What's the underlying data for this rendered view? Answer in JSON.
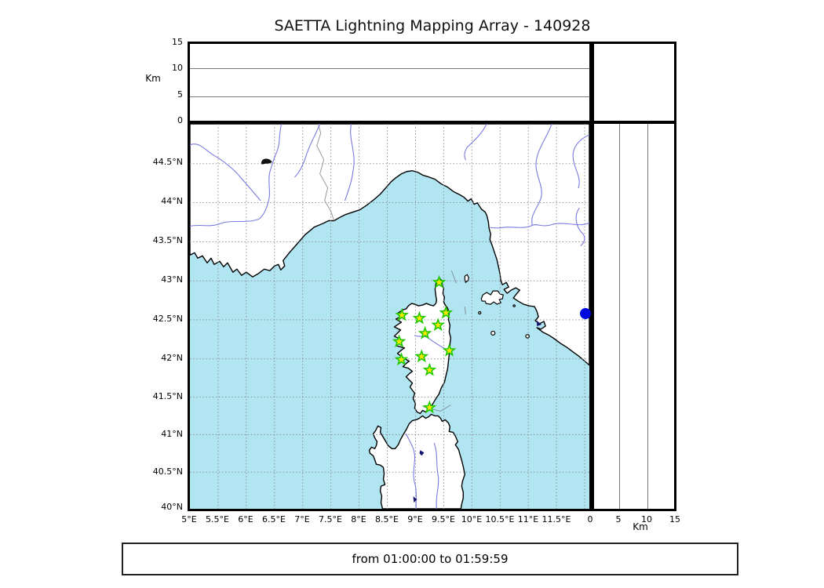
{
  "title": "SAETTA Lightning Mapping Array - 140928",
  "footer": {
    "text": "from 01:00:00 to 01:59:59"
  },
  "altitude_axis": {
    "label": "Km",
    "range_km": [
      0,
      15
    ],
    "top_panel_ticks": [
      "15",
      "10",
      "5",
      "0"
    ],
    "right_panel_ticks": [
      "0",
      "5",
      "10",
      "15"
    ]
  },
  "map": {
    "lat_ticks": [
      "44.5°N",
      "44°N",
      "43.5°N",
      "43°N",
      "42.5°N",
      "42°N",
      "41.5°N",
      "41°N",
      "40.5°N",
      "40°N"
    ],
    "lon_ticks": [
      "5°E",
      "5.5°E",
      "6°E",
      "6.5°E",
      "7°E",
      "7.5°E",
      "8°E",
      "8.5°E",
      "9°E",
      "9.5°E",
      "10°E",
      "10.5°E",
      "11°E",
      "11.5°E"
    ],
    "lon_range": [
      5.0,
      12.08
    ],
    "lat_range": [
      40.0,
      45.0
    ],
    "stations": [
      {
        "lon": 9.42,
        "lat": 42.98
      },
      {
        "lon": 8.76,
        "lat": 42.56
      },
      {
        "lon": 9.07,
        "lat": 42.52
      },
      {
        "lon": 9.54,
        "lat": 42.59
      },
      {
        "lon": 9.4,
        "lat": 42.43
      },
      {
        "lon": 9.17,
        "lat": 42.32
      },
      {
        "lon": 8.71,
        "lat": 42.21
      },
      {
        "lon": 9.6,
        "lat": 42.09
      },
      {
        "lon": 9.11,
        "lat": 42.01
      },
      {
        "lon": 8.75,
        "lat": 41.97
      },
      {
        "lon": 9.25,
        "lat": 41.83
      },
      {
        "lon": 9.25,
        "lat": 41.33
      }
    ],
    "event": {
      "lon": 12.01,
      "lat": 42.58,
      "alt_km": 0
    }
  },
  "colors": {
    "sea": "#b2e5f2",
    "land": "#ffffff",
    "coastline": "#000000",
    "river": "#7a7ade",
    "country_border": "#999999",
    "grid": "#888888",
    "station_fill": "#ffe800",
    "station_stroke": "#1ec800",
    "event_dot": "#0008e0",
    "lake": "#16166e",
    "frame": "#000000"
  }
}
